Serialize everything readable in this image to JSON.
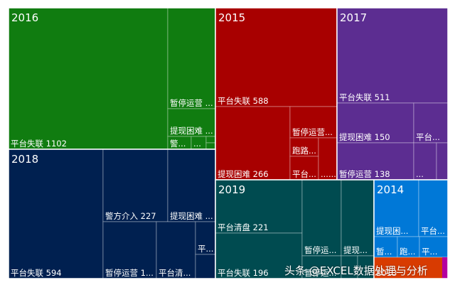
{
  "chart_data": {
    "type": "treemap",
    "title": "",
    "groups": [
      {
        "name": "2016",
        "color": "#107c10",
        "items": [
          {
            "label": "平台失联 1102",
            "value": 1102
          },
          {
            "label": "暂停运营 ...",
            "value": 233
          },
          {
            "label": "提现困难 ...",
            "value": 48
          },
          {
            "label": "警...",
            "value": 22
          },
          {
            "label": "...",
            "value": 18
          },
          {
            "label": "",
            "value": 10
          },
          {
            "label": "",
            "value": 10
          }
        ]
      },
      {
        "name": "2015",
        "color": "#a80000",
        "items": [
          {
            "label": "平台失联 588",
            "value": 588
          },
          {
            "label": "提现困难 266",
            "value": 266
          },
          {
            "label": "暂停运营...",
            "value": 38
          },
          {
            "label": "跑路...",
            "value": 17
          },
          {
            "label": "平台...",
            "value": 15
          },
          {
            "label": "......",
            "value": 7
          }
        ]
      },
      {
        "name": "2017",
        "color": "#5c2d91",
        "items": [
          {
            "label": "平台失联 511",
            "value": 511
          },
          {
            "label": "提现困难 150",
            "value": 150
          },
          {
            "label": "暂停运营 138",
            "value": 138
          },
          {
            "label": "平台...",
            "value": 46
          },
          {
            "label": "...",
            "value": 20
          },
          {
            "label": "",
            "value": 10
          }
        ]
      },
      {
        "name": "2018",
        "color": "#002050",
        "items": [
          {
            "label": "平台失联 594",
            "value": 594
          },
          {
            "label": "警方介入 227",
            "value": 227
          },
          {
            "label": "提现困难 ...",
            "value": 212
          },
          {
            "label": "暂停运营 1...",
            "value": 150
          },
          {
            "label": "平台清...",
            "value": 120
          },
          {
            "label": "平...",
            "value": 30
          },
          {
            "label": "",
            "value": 20
          }
        ]
      },
      {
        "name": "2019",
        "color": "#004b50",
        "items": [
          {
            "label": "平台清盘 221",
            "value": 221
          },
          {
            "label": "平台失联 196",
            "value": 196
          },
          {
            "label": "暂停运...",
            "value": 101
          },
          {
            "label": "暂停运...",
            "value": 81
          },
          {
            "label": "提现...",
            "value": 73
          },
          {
            "label": "",
            "value": 23
          },
          {
            "label": "",
            "value": 20
          }
        ]
      },
      {
        "name": "2014",
        "color": "#0078d7",
        "items": [
          {
            "label": "提现困...",
            "value": 68
          },
          {
            "label": "平台...",
            "value": 51
          },
          {
            "label": "暂...",
            "value": 30
          },
          {
            "label": "跑...",
            "value": 25
          },
          {
            "label": "平...",
            "value": 25
          },
          {
            "label": "2013",
            "value": 21
          }
        ]
      }
    ],
    "grid": false,
    "legend": "none"
  },
  "watermark": {
    "text": "头条 @EXCEL数据处理与分析"
  }
}
